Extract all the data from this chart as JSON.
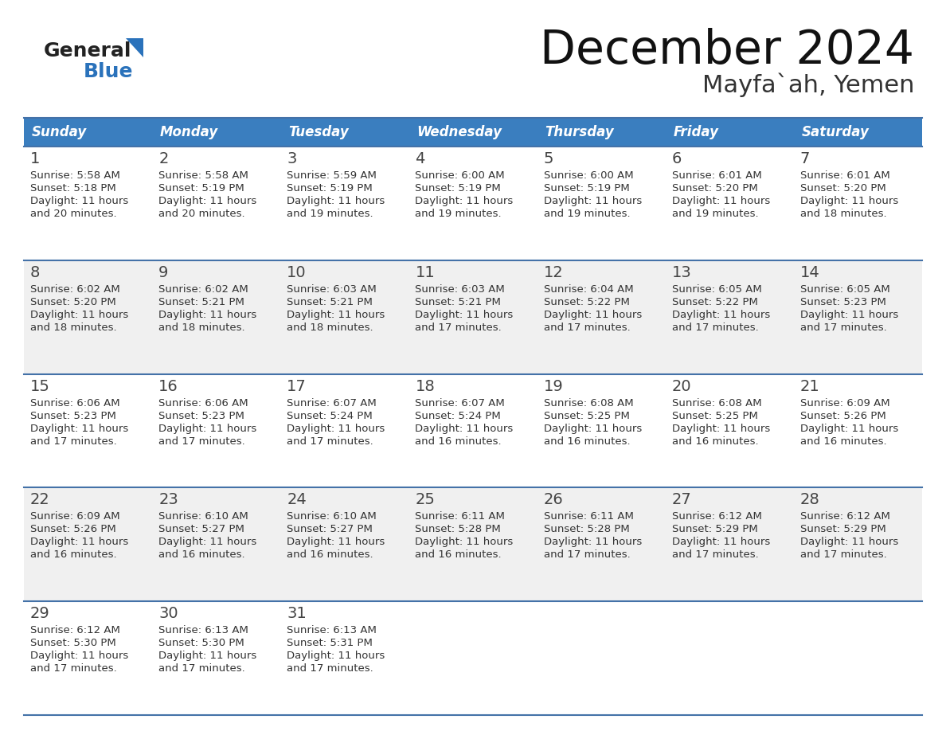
{
  "title": "December 2024",
  "subtitle": "Mayfa`ah, Yemen",
  "header_color": "#3a7ebf",
  "header_text_color": "#ffffff",
  "days_of_week": [
    "Sunday",
    "Monday",
    "Tuesday",
    "Wednesday",
    "Thursday",
    "Friday",
    "Saturday"
  ],
  "calendar": [
    [
      {
        "day": "1",
        "sunrise": "5:58 AM",
        "sunset": "5:18 PM",
        "daylight_l1": "11 hours",
        "daylight_l2": "and 20 minutes."
      },
      {
        "day": "2",
        "sunrise": "5:58 AM",
        "sunset": "5:19 PM",
        "daylight_l1": "11 hours",
        "daylight_l2": "and 20 minutes."
      },
      {
        "day": "3",
        "sunrise": "5:59 AM",
        "sunset": "5:19 PM",
        "daylight_l1": "11 hours",
        "daylight_l2": "and 19 minutes."
      },
      {
        "day": "4",
        "sunrise": "6:00 AM",
        "sunset": "5:19 PM",
        "daylight_l1": "11 hours",
        "daylight_l2": "and 19 minutes."
      },
      {
        "day": "5",
        "sunrise": "6:00 AM",
        "sunset": "5:19 PM",
        "daylight_l1": "11 hours",
        "daylight_l2": "and 19 minutes."
      },
      {
        "day": "6",
        "sunrise": "6:01 AM",
        "sunset": "5:20 PM",
        "daylight_l1": "11 hours",
        "daylight_l2": "and 19 minutes."
      },
      {
        "day": "7",
        "sunrise": "6:01 AM",
        "sunset": "5:20 PM",
        "daylight_l1": "11 hours",
        "daylight_l2": "and 18 minutes."
      }
    ],
    [
      {
        "day": "8",
        "sunrise": "6:02 AM",
        "sunset": "5:20 PM",
        "daylight_l1": "11 hours",
        "daylight_l2": "and 18 minutes."
      },
      {
        "day": "9",
        "sunrise": "6:02 AM",
        "sunset": "5:21 PM",
        "daylight_l1": "11 hours",
        "daylight_l2": "and 18 minutes."
      },
      {
        "day": "10",
        "sunrise": "6:03 AM",
        "sunset": "5:21 PM",
        "daylight_l1": "11 hours",
        "daylight_l2": "and 18 minutes."
      },
      {
        "day": "11",
        "sunrise": "6:03 AM",
        "sunset": "5:21 PM",
        "daylight_l1": "11 hours",
        "daylight_l2": "and 17 minutes."
      },
      {
        "day": "12",
        "sunrise": "6:04 AM",
        "sunset": "5:22 PM",
        "daylight_l1": "11 hours",
        "daylight_l2": "and 17 minutes."
      },
      {
        "day": "13",
        "sunrise": "6:05 AM",
        "sunset": "5:22 PM",
        "daylight_l1": "11 hours",
        "daylight_l2": "and 17 minutes."
      },
      {
        "day": "14",
        "sunrise": "6:05 AM",
        "sunset": "5:23 PM",
        "daylight_l1": "11 hours",
        "daylight_l2": "and 17 minutes."
      }
    ],
    [
      {
        "day": "15",
        "sunrise": "6:06 AM",
        "sunset": "5:23 PM",
        "daylight_l1": "11 hours",
        "daylight_l2": "and 17 minutes."
      },
      {
        "day": "16",
        "sunrise": "6:06 AM",
        "sunset": "5:23 PM",
        "daylight_l1": "11 hours",
        "daylight_l2": "and 17 minutes."
      },
      {
        "day": "17",
        "sunrise": "6:07 AM",
        "sunset": "5:24 PM",
        "daylight_l1": "11 hours",
        "daylight_l2": "and 17 minutes."
      },
      {
        "day": "18",
        "sunrise": "6:07 AM",
        "sunset": "5:24 PM",
        "daylight_l1": "11 hours",
        "daylight_l2": "and 16 minutes."
      },
      {
        "day": "19",
        "sunrise": "6:08 AM",
        "sunset": "5:25 PM",
        "daylight_l1": "11 hours",
        "daylight_l2": "and 16 minutes."
      },
      {
        "day": "20",
        "sunrise": "6:08 AM",
        "sunset": "5:25 PM",
        "daylight_l1": "11 hours",
        "daylight_l2": "and 16 minutes."
      },
      {
        "day": "21",
        "sunrise": "6:09 AM",
        "sunset": "5:26 PM",
        "daylight_l1": "11 hours",
        "daylight_l2": "and 16 minutes."
      }
    ],
    [
      {
        "day": "22",
        "sunrise": "6:09 AM",
        "sunset": "5:26 PM",
        "daylight_l1": "11 hours",
        "daylight_l2": "and 16 minutes."
      },
      {
        "day": "23",
        "sunrise": "6:10 AM",
        "sunset": "5:27 PM",
        "daylight_l1": "11 hours",
        "daylight_l2": "and 16 minutes."
      },
      {
        "day": "24",
        "sunrise": "6:10 AM",
        "sunset": "5:27 PM",
        "daylight_l1": "11 hours",
        "daylight_l2": "and 16 minutes."
      },
      {
        "day": "25",
        "sunrise": "6:11 AM",
        "sunset": "5:28 PM",
        "daylight_l1": "11 hours",
        "daylight_l2": "and 16 minutes."
      },
      {
        "day": "26",
        "sunrise": "6:11 AM",
        "sunset": "5:28 PM",
        "daylight_l1": "11 hours",
        "daylight_l2": "and 17 minutes."
      },
      {
        "day": "27",
        "sunrise": "6:12 AM",
        "sunset": "5:29 PM",
        "daylight_l1": "11 hours",
        "daylight_l2": "and 17 minutes."
      },
      {
        "day": "28",
        "sunrise": "6:12 AM",
        "sunset": "5:29 PM",
        "daylight_l1": "11 hours",
        "daylight_l2": "and 17 minutes."
      }
    ],
    [
      {
        "day": "29",
        "sunrise": "6:12 AM",
        "sunset": "5:30 PM",
        "daylight_l1": "11 hours",
        "daylight_l2": "and 17 minutes."
      },
      {
        "day": "30",
        "sunrise": "6:13 AM",
        "sunset": "5:30 PM",
        "daylight_l1": "11 hours",
        "daylight_l2": "and 17 minutes."
      },
      {
        "day": "31",
        "sunrise": "6:13 AM",
        "sunset": "5:31 PM",
        "daylight_l1": "11 hours",
        "daylight_l2": "and 17 minutes."
      },
      null,
      null,
      null,
      null
    ]
  ],
  "bg_color": "#ffffff",
  "cell_bg_white": "#ffffff",
  "cell_bg_gray": "#f0f0f0",
  "border_color": "#4472a8",
  "text_color": "#333333",
  "day_num_color": "#555555",
  "logo_general_color": "#222222",
  "logo_blue_color": "#2a72bb"
}
